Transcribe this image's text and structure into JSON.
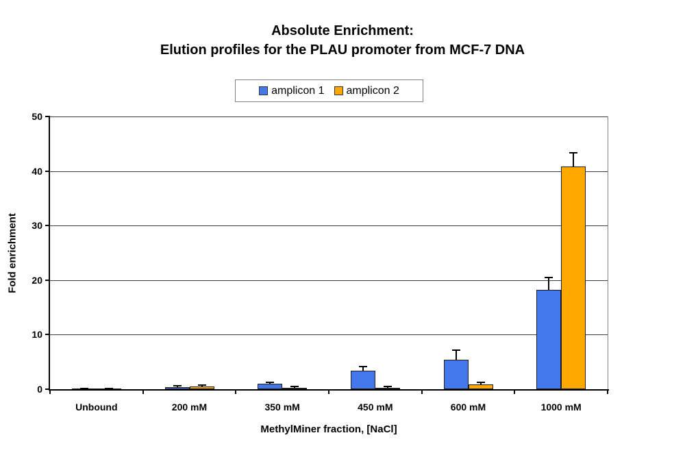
{
  "chart_data": {
    "type": "bar",
    "title": "Absolute Enrichment:",
    "subtitle": "Elution profiles for the PLAU promoter from MCF-7 DNA",
    "xlabel": "MethylMiner fraction, [NaCl]",
    "ylabel": "Fold enrichment",
    "categories": [
      "Unbound",
      "200 mM",
      "350 mM",
      "450 mM",
      "600 mM",
      "1000 mM"
    ],
    "series": [
      {
        "name": "amplicon 1",
        "color": "#4377EA",
        "values": [
          0.1,
          0.35,
          1.0,
          3.4,
          5.4,
          18.2
        ],
        "errors": [
          0.05,
          0.3,
          0.3,
          0.8,
          1.7,
          2.3
        ]
      },
      {
        "name": "amplicon 2",
        "color": "#FFA800",
        "values": [
          0.1,
          0.5,
          0.3,
          0.3,
          0.9,
          40.8
        ],
        "errors": [
          0.05,
          0.3,
          0.25,
          0.25,
          0.4,
          2.5
        ]
      }
    ],
    "ylim": [
      0,
      50
    ],
    "yticks": [
      0,
      10,
      20,
      30,
      40,
      50
    ],
    "grid": true,
    "legend_position": "top-center",
    "error_bars": true
  }
}
